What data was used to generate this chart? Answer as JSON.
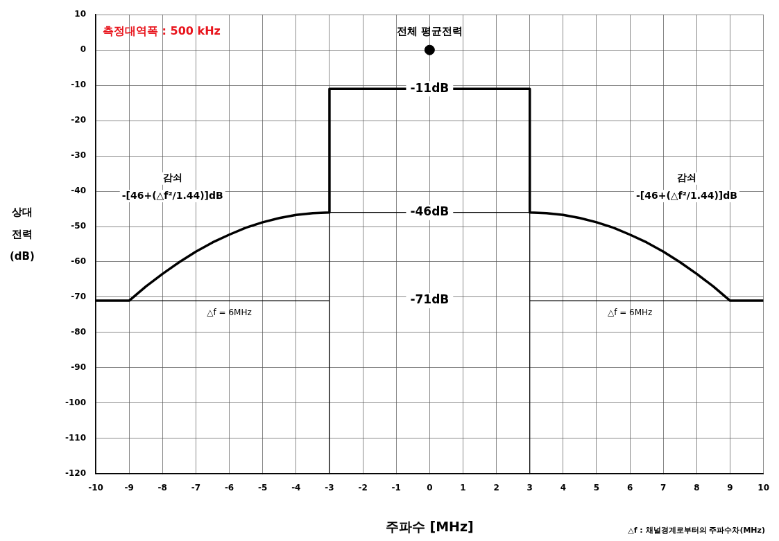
{
  "chart_data": {
    "type": "line",
    "xlabel": "주파수 [MHz]",
    "ylabel": "상대전력 (dB)",
    "xlim": [
      -10,
      10
    ],
    "xticks": [
      -10,
      -9,
      -8,
      -7,
      -6,
      -5,
      -4,
      -3,
      -2,
      -1,
      0,
      1,
      2,
      3,
      4,
      5,
      6,
      7,
      8,
      9,
      10
    ],
    "ylim": [
      -120,
      10
    ],
    "yticks": [
      -120,
      -110,
      -100,
      -90,
      -80,
      -70,
      -60,
      -50,
      -40,
      -30,
      -20,
      -10,
      0,
      10
    ],
    "grid": true,
    "legend": false,
    "marker": "none",
    "line_style": "solid",
    "series": [
      {
        "color": "#000000",
        "x": [
          -10,
          -9,
          -8.5,
          -8,
          -7.5,
          -7,
          -6.5,
          -6,
          -5.5,
          -5,
          -4.5,
          -4,
          -3.5,
          -3,
          -3,
          3,
          3,
          3.5,
          4,
          4.5,
          5,
          5.5,
          6,
          6.5,
          7,
          7.5,
          8,
          8.5,
          9,
          10
        ],
        "values": [
          -71,
          -71,
          -67,
          -63.4,
          -60.1,
          -57.1,
          -54.5,
          -52.3,
          -50.3,
          -48.8,
          -47.6,
          -46.7,
          -46.2,
          -46,
          -11,
          -11,
          -46,
          -46.2,
          -46.7,
          -47.6,
          -48.8,
          -50.3,
          -52.3,
          -54.5,
          -57.1,
          -60.1,
          -63.4,
          -67,
          -71,
          -71
        ]
      },
      {
        "color": "#000000",
        "x": [
          -3,
          3
        ],
        "values": [
          -46,
          -46
        ]
      },
      {
        "color": "#000000",
        "x": [
          -3,
          -3
        ],
        "values": [
          -46,
          -120
        ]
      },
      {
        "color": "#000000",
        "x": [
          3,
          3
        ],
        "values": [
          -46,
          -120
        ]
      },
      {
        "color": "#000000",
        "x": [
          -3,
          -9
        ],
        "values": [
          -71,
          -71
        ]
      },
      {
        "color": "#000000",
        "x": [
          3,
          9
        ],
        "values": [
          -71,
          -71
        ]
      },
      {
        "type": "scatter",
        "marker": "circle",
        "color": "#000000",
        "x": [
          0
        ],
        "values": [
          0
        ]
      }
    ],
    "annotations": [
      "측정대역폭 : 500 kHz",
      "△f : 채널경계로부터의 주파수차(MHz)",
      "-71dB",
      "감쇠",
      "-[46+(△f²/1.44)]dB",
      "감쇠",
      "-[46+(△f²/1.44)]dB",
      {
        "text": "전체 평균전력",
        "x": 0,
        "y": 0
      },
      {
        "text": "-11dB",
        "x": 0,
        "y": -11
      },
      {
        "text": "-46dB",
        "x": 0,
        "y": -46
      },
      {
        "text": "△f = 6MHz",
        "x": -6,
        "y": -71
      },
      {
        "text": "△f = 6MHz",
        "x": 6,
        "y": -71
      }
    ]
  }
}
